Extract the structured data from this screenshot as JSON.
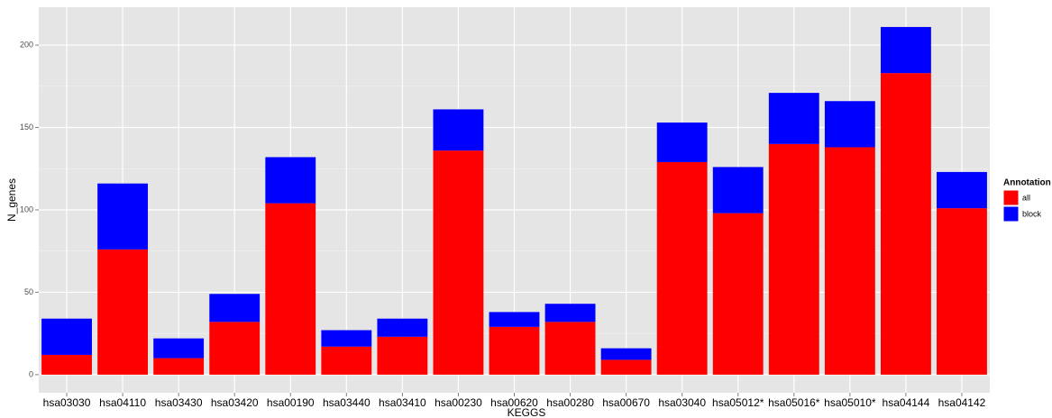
{
  "chart_data": {
    "type": "stacked_bar",
    "x_label": "KEGGS",
    "y_label": "N_genes",
    "categories": [
      "hsa03030",
      "hsa04110",
      "hsa03430",
      "hsa03420",
      "hsa00190",
      "hsa03440",
      "hsa03410",
      "hsa00230",
      "hsa00620",
      "hsa00280",
      "hsa00670",
      "hsa03040",
      "hsa05012*",
      "hsa05016*",
      "hsa05010*",
      "hsa04144",
      "hsa04142"
    ],
    "series": [
      {
        "name": "all",
        "color": "#ff0000",
        "values": [
          12,
          76,
          10,
          32,
          104,
          17,
          23,
          136,
          29,
          32,
          9,
          129,
          98,
          140,
          138,
          183,
          101
        ]
      },
      {
        "name": "block",
        "color": "#0000ff",
        "values": [
          22,
          40,
          12,
          17,
          28,
          10,
          11,
          25,
          9,
          11,
          7,
          24,
          28,
          31,
          28,
          28,
          22
        ]
      }
    ],
    "legend_title": "Annotation",
    "ylim": [
      -11,
      223
    ],
    "yticks": [
      0,
      50,
      100,
      150,
      200
    ],
    "grid": true,
    "legend_position": "right"
  }
}
